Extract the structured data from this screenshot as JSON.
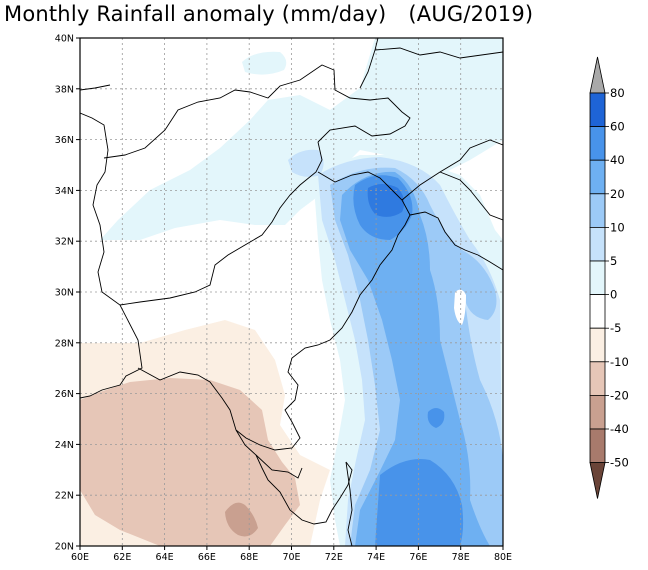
{
  "title": {
    "main": "Monthly Rainfall anomaly (mm/day)",
    "period": "(AUG/2019)"
  },
  "chart_data": {
    "type": "heatmap",
    "title": "Monthly Rainfall anomaly (mm/day)",
    "period": "AUG/2019",
    "units": "mm/day",
    "x_range": [
      60,
      80
    ],
    "y_range": [
      20,
      40
    ],
    "x_ticks": [
      "60E",
      "62E",
      "64E",
      "66E",
      "68E",
      "70E",
      "72E",
      "74E",
      "76E",
      "78E",
      "80E"
    ],
    "y_ticks": [
      "20N",
      "22N",
      "24N",
      "26N",
      "28N",
      "30N",
      "32N",
      "34N",
      "36N",
      "38N",
      "40N"
    ],
    "grid": true,
    "colorbar": {
      "position": "right",
      "labels": [
        "80",
        "60",
        "40",
        "20",
        "10",
        "5",
        "0",
        "-5",
        "-10",
        "-20",
        "-40",
        "-50"
      ],
      "colors": [
        "#1e64d6",
        "#2f7ae0",
        "#4893ea",
        "#6eb0f2",
        "#9ccaf7",
        "#c6e2fb",
        "#e3f6fb",
        "#ffffff",
        "#fbefe3",
        "#e6c6b7",
        "#c9a090",
        "#a87a6c",
        "#8a5f52",
        "#6a4438"
      ]
    },
    "colors": {
      "pos5": "#e3f6fb",
      "pos10": "#c6e2fb",
      "pos20": "#9ccaf7",
      "pos40": "#6eb0f2",
      "pos60": "#4893ea",
      "pos80": "#2f7ae0",
      "neg5": "#fbefe3",
      "neg10": "#e6c6b7",
      "neg20": "#c9a090",
      "neg40": "#a87a6c"
    }
  }
}
